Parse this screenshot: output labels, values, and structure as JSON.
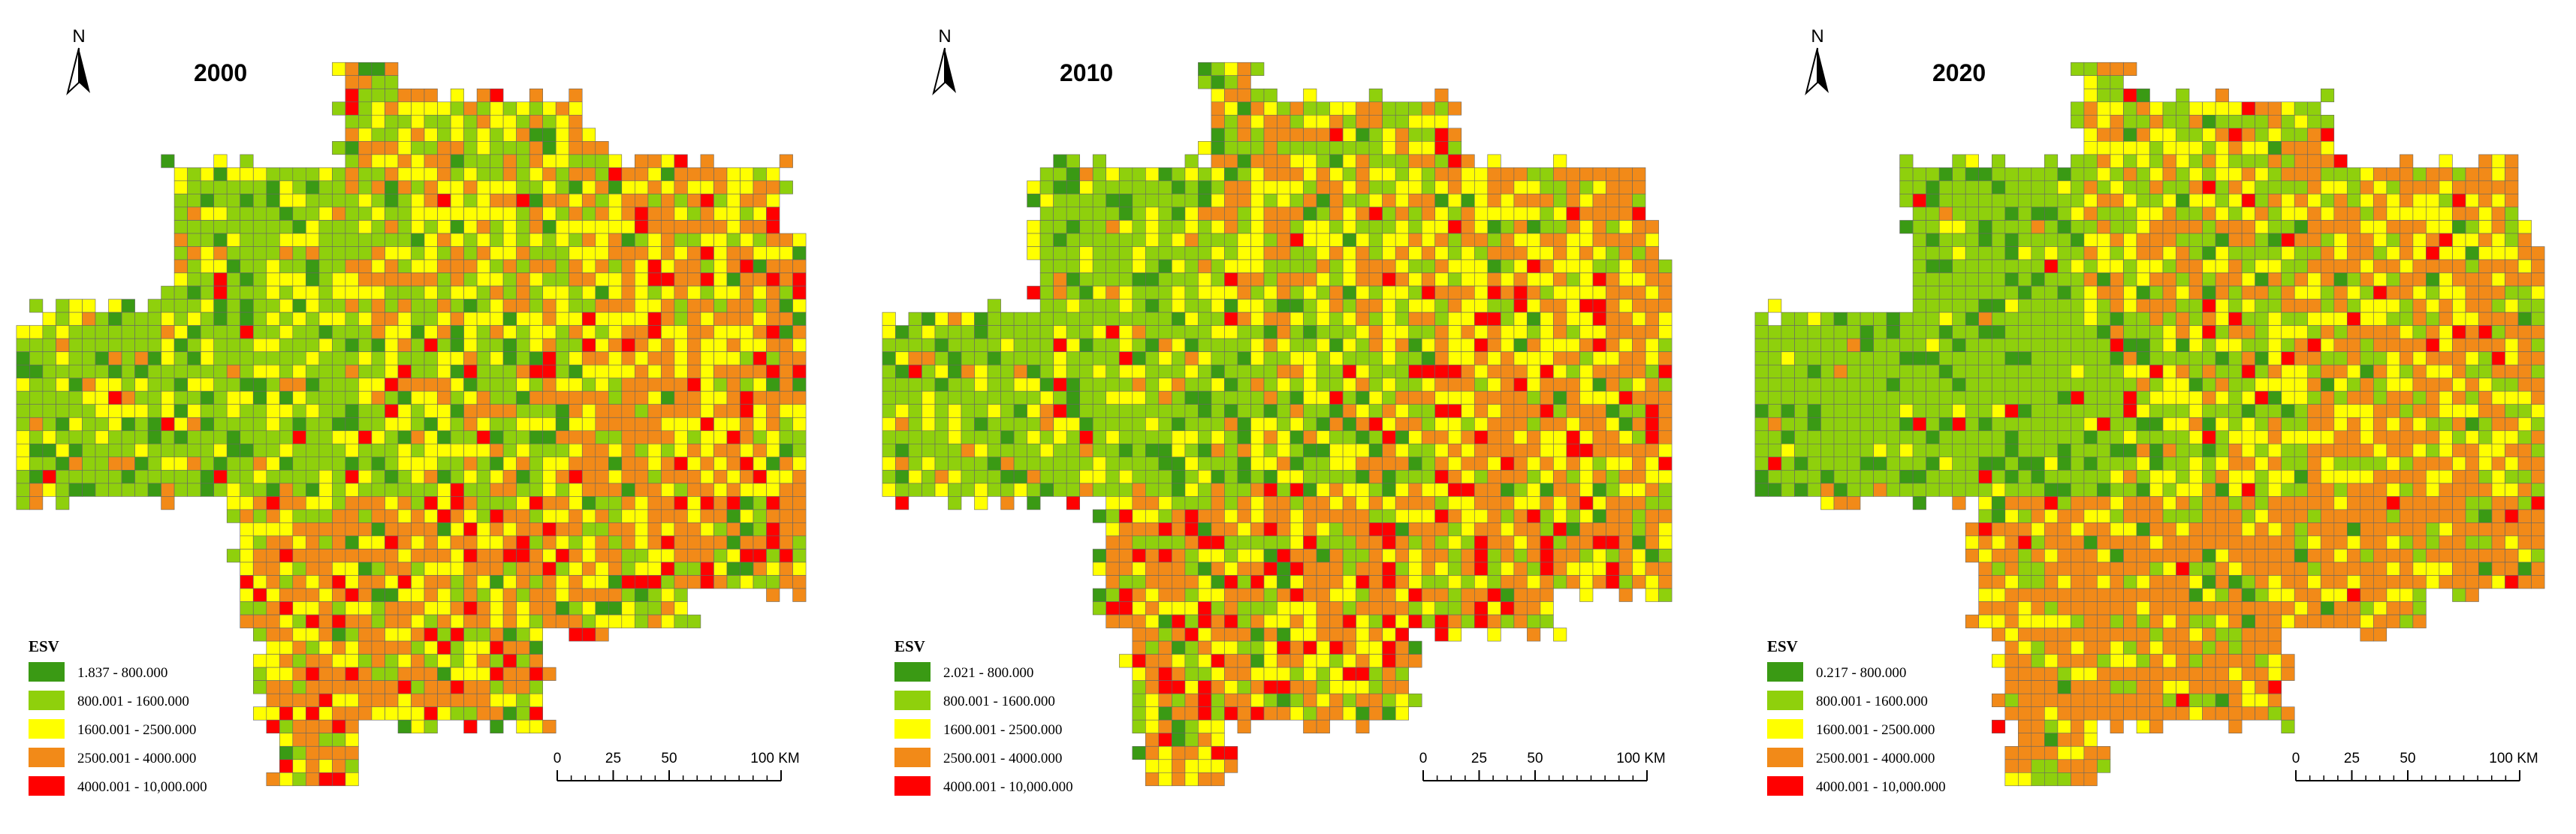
{
  "panels": [
    {
      "year": "2000",
      "north": "N",
      "legend": {
        "title": "ESV",
        "items": [
          {
            "label": "1.837 - 800.000",
            "color": "#3a9a14"
          },
          {
            "label": "800.001 - 1600.000",
            "color": "#8fd00c"
          },
          {
            "label": "1600.001 - 2500.000",
            "color": "#ffff00"
          },
          {
            "label": "2500.001 - 4000.000",
            "color": "#f28a18"
          },
          {
            "label": "4000.001 - 10,000.000",
            "color": "#ff0000"
          }
        ]
      },
      "scale_bar": {
        "ticks": [
          0,
          25,
          50,
          {
            "value": 100,
            "label": "100 KM"
          }
        ]
      }
    },
    {
      "year": "2010",
      "north": "N",
      "legend": {
        "title": "ESV",
        "items": [
          {
            "label": "2.021 - 800.000",
            "color": "#3a9a14"
          },
          {
            "label": "800.001 - 1600.000",
            "color": "#8fd00c"
          },
          {
            "label": "1600.001 - 2500.000",
            "color": "#ffff00"
          },
          {
            "label": "2500.001 - 4000.000",
            "color": "#f28a18"
          },
          {
            "label": "4000.001 - 10,000.000",
            "color": "#ff0000"
          }
        ]
      },
      "scale_bar": {
        "ticks": [
          0,
          25,
          50,
          {
            "value": 100,
            "label": "100 KM"
          }
        ]
      }
    },
    {
      "year": "2020",
      "north": "N",
      "legend": {
        "title": "ESV",
        "items": [
          {
            "label": "0.217 - 800.000",
            "color": "#3a9a14"
          },
          {
            "label": "800.001 - 1600.000",
            "color": "#8fd00c"
          },
          {
            "label": "1600.001 - 2500.000",
            "color": "#ffff00"
          },
          {
            "label": "2500.001 - 4000.000",
            "color": "#f28a18"
          },
          {
            "label": "4000.001 - 10,000.000",
            "color": "#ff0000"
          }
        ]
      },
      "scale_bar": {
        "ticks": [
          0,
          25,
          50,
          {
            "value": 100,
            "label": "100 KM"
          }
        ]
      }
    }
  ]
}
